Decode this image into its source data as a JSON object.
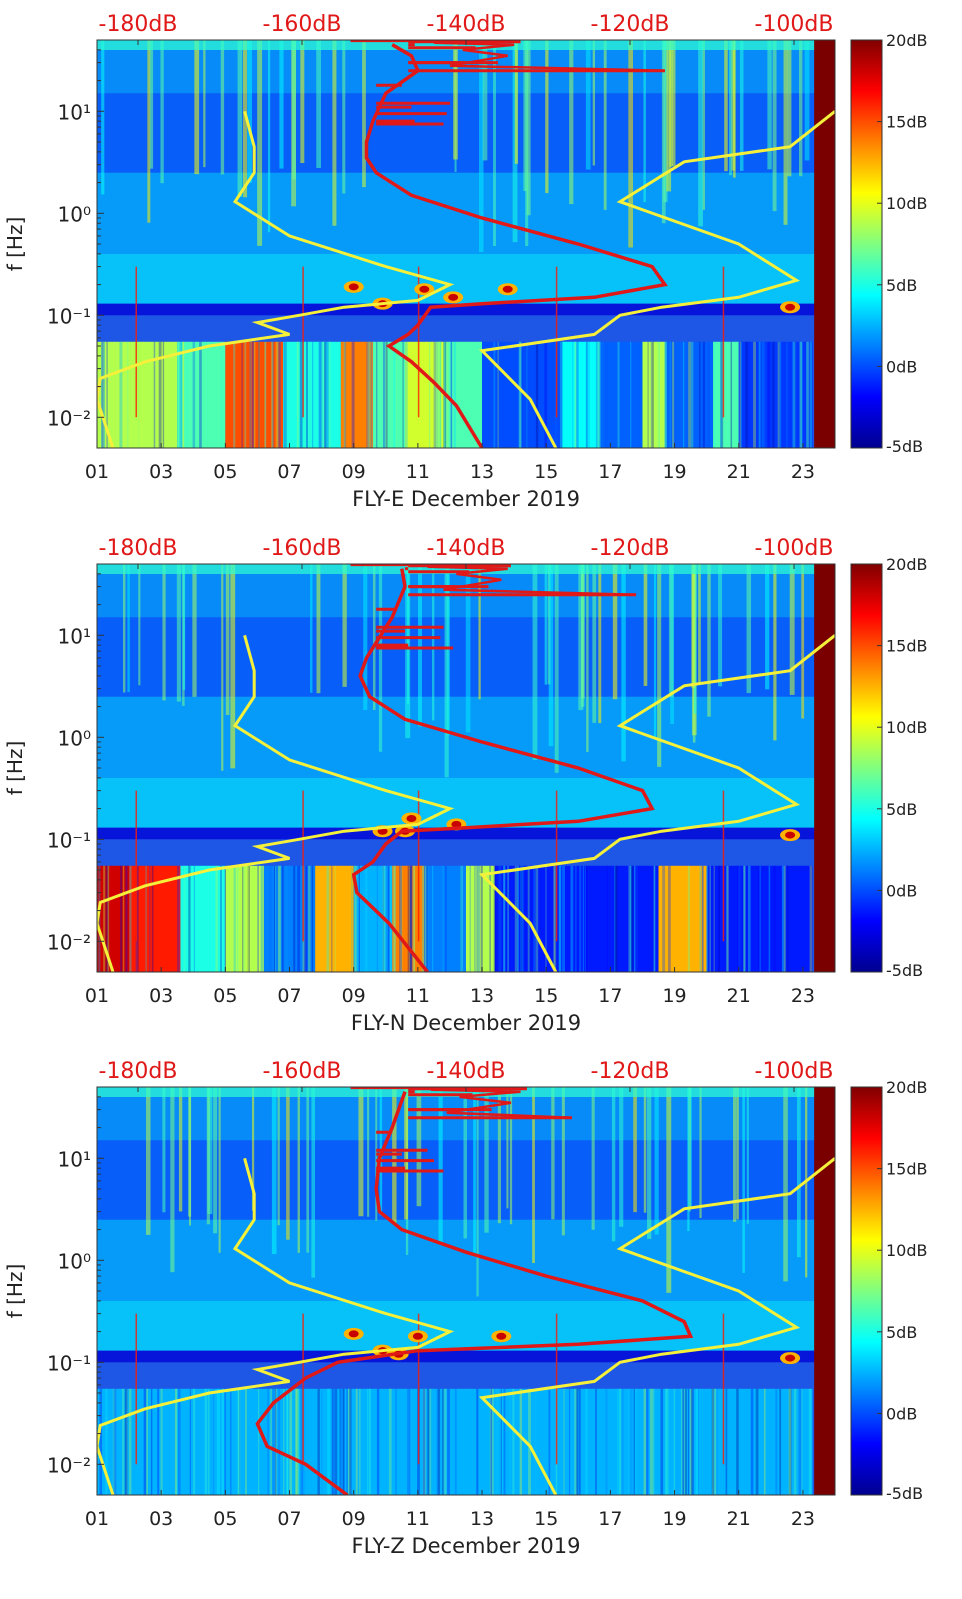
{
  "colors": {
    "background_noise": "#1e56e6",
    "yellow_model": "#f5f03a",
    "red_model": "#e01818",
    "top_label": "#e01818",
    "text": "#222222",
    "side_bar": "#7a0000"
  },
  "colormap": [
    "#00008f",
    "#0000ff",
    "#0080ff",
    "#00ffff",
    "#80ff80",
    "#ffff00",
    "#ff8000",
    "#ff0000",
    "#800000"
  ],
  "chart_data": [
    {
      "type": "heatmap",
      "title": "FLY-E December 2019",
      "xlabel": "FLY-E December 2019",
      "ylabel": "f [Hz]",
      "x_ticks": [
        "01",
        "03",
        "05",
        "07",
        "09",
        "11",
        "13",
        "15",
        "17",
        "19",
        "21",
        "23"
      ],
      "xlim": [
        1,
        24
      ],
      "y_ticks": [
        "10⁻²",
        "10⁻¹",
        "10⁰",
        "10¹"
      ],
      "ylim_hz": [
        0.005,
        50
      ],
      "top_axis_labels": [
        "-180dB",
        "-160dB",
        "-140dB",
        "-120dB",
        "-100dB"
      ],
      "top_axis_range_db": [
        -185,
        -95
      ],
      "colorbar": {
        "ticks": [
          "20dB",
          "15dB",
          "10dB",
          "5dB",
          "0dB",
          "-5dB"
        ],
        "range_db": [
          -5,
          20
        ]
      },
      "low_freq_bands": [
        {
          "x0": 1.0,
          "x1": 3.5,
          "level": 0.55
        },
        {
          "x0": 3.5,
          "x1": 5.0,
          "level": 0.45
        },
        {
          "x0": 5.0,
          "x1": 6.8,
          "level": 0.8
        },
        {
          "x0": 6.8,
          "x1": 8.6,
          "level": 0.4
        },
        {
          "x0": 8.6,
          "x1": 9.6,
          "level": 0.75
        },
        {
          "x0": 9.6,
          "x1": 10.6,
          "level": 0.45
        },
        {
          "x0": 10.6,
          "x1": 11.8,
          "level": 0.58
        },
        {
          "x0": 11.8,
          "x1": 13.0,
          "level": 0.45
        },
        {
          "x0": 13.0,
          "x1": 15.5,
          "level": 0.2
        },
        {
          "x0": 15.5,
          "x1": 16.7,
          "level": 0.38
        },
        {
          "x0": 16.7,
          "x1": 18.0,
          "level": 0.22
        },
        {
          "x0": 18.0,
          "x1": 18.7,
          "level": 0.55
        },
        {
          "x0": 18.7,
          "x1": 20.2,
          "level": 0.22
        },
        {
          "x0": 20.2,
          "x1": 21.0,
          "level": 0.45
        },
        {
          "x0": 21.0,
          "x1": 23.3,
          "level": 0.18
        }
      ],
      "hotspots": [
        [
          9.0,
          0.19
        ],
        [
          9.9,
          0.13
        ],
        [
          11.2,
          0.18
        ],
        [
          13.8,
          0.18
        ],
        [
          22.6,
          0.12
        ],
        [
          12.1,
          0.15
        ]
      ],
      "yellow_low_noise_model": [
        [
          5.6,
          10
        ],
        [
          5.9,
          4.5
        ],
        [
          5.9,
          2.5
        ],
        [
          5.3,
          1.3
        ],
        [
          7.0,
          0.6
        ],
        [
          10.0,
          0.3
        ],
        [
          12.0,
          0.2
        ],
        [
          11.0,
          0.14
        ],
        [
          8.7,
          0.12
        ],
        [
          7.3,
          0.1
        ],
        [
          6.0,
          0.085
        ],
        [
          7.0,
          0.065
        ],
        [
          4.5,
          0.05
        ],
        [
          2.5,
          0.035
        ],
        [
          1.1,
          0.024
        ],
        [
          1.0,
          0.015
        ],
        [
          1.5,
          0.005
        ]
      ],
      "yellow_high_noise_model": [
        [
          24.0,
          10
        ],
        [
          22.6,
          4.5
        ],
        [
          19.3,
          3.2
        ],
        [
          17.3,
          1.3
        ],
        [
          21.0,
          0.5
        ],
        [
          22.8,
          0.22
        ],
        [
          21.0,
          0.15
        ],
        [
          18.6,
          0.12
        ],
        [
          17.3,
          0.1
        ],
        [
          16.5,
          0.065
        ],
        [
          13.0,
          0.045
        ],
        [
          14.5,
          0.015
        ],
        [
          15.3,
          0.005
        ]
      ],
      "red_median": [
        [
          10.2,
          45
        ],
        [
          10.8,
          35
        ],
        [
          11.0,
          25
        ],
        [
          10.0,
          15
        ],
        [
          9.6,
          8
        ],
        [
          9.4,
          5
        ],
        [
          9.4,
          3.5
        ],
        [
          9.7,
          2.5
        ],
        [
          10.8,
          1.5
        ],
        [
          13.0,
          0.9
        ],
        [
          16.0,
          0.5
        ],
        [
          18.3,
          0.3
        ],
        [
          18.7,
          0.2
        ],
        [
          16.5,
          0.15
        ],
        [
          13.0,
          0.13
        ],
        [
          11.4,
          0.12
        ],
        [
          11.0,
          0.08
        ],
        [
          10.7,
          0.065
        ],
        [
          10.1,
          0.05
        ],
        [
          10.8,
          0.035
        ],
        [
          11.5,
          0.022
        ],
        [
          12.2,
          0.013
        ],
        [
          13.0,
          0.005
        ]
      ],
      "red_spikes": [
        [
          10.5,
          18
        ],
        [
          12.0,
          12
        ],
        [
          10.8,
          11
        ],
        [
          11.9,
          9.5
        ],
        [
          10.9,
          8
        ],
        [
          11.8,
          7.5
        ],
        [
          13.5,
          30
        ],
        [
          12.5,
          30
        ],
        [
          18.7,
          25
        ],
        [
          10.9,
          45
        ],
        [
          12.8,
          42
        ],
        [
          14.2,
          48
        ]
      ],
      "red_top_segment": [
        [
          8.9,
          49
        ],
        [
          13.0,
          49
        ],
        [
          11.5,
          47
        ],
        [
          14.0,
          45
        ],
        [
          12.4,
          40
        ],
        [
          13.8,
          35
        ],
        [
          12.0,
          28
        ],
        [
          18.7,
          25
        ]
      ]
    },
    {
      "type": "heatmap",
      "title": "FLY-N December 2019",
      "xlabel": "FLY-N December 2019",
      "ylabel": "f [Hz]",
      "x_ticks": [
        "01",
        "03",
        "05",
        "07",
        "09",
        "11",
        "13",
        "15",
        "17",
        "19",
        "21",
        "23"
      ],
      "xlim": [
        1,
        24
      ],
      "y_ticks": [
        "10⁻²",
        "10⁻¹",
        "10⁰",
        "10¹"
      ],
      "ylim_hz": [
        0.005,
        50
      ],
      "top_axis_labels": [
        "-180dB",
        "-160dB",
        "-140dB",
        "-120dB",
        "-100dB"
      ],
      "top_axis_range_db": [
        -185,
        -95
      ],
      "colorbar": {
        "ticks": [
          "20dB",
          "15dB",
          "10dB",
          "5dB",
          "0dB",
          "-5dB"
        ],
        "range_db": [
          -5,
          20
        ]
      },
      "low_freq_bands": [
        {
          "x0": 1.0,
          "x1": 2.0,
          "level": 0.92
        },
        {
          "x0": 2.0,
          "x1": 3.6,
          "level": 0.85
        },
        {
          "x0": 3.6,
          "x1": 5.0,
          "level": 0.4
        },
        {
          "x0": 5.0,
          "x1": 6.2,
          "level": 0.55
        },
        {
          "x0": 6.2,
          "x1": 7.8,
          "level": 0.25
        },
        {
          "x0": 7.8,
          "x1": 9.0,
          "level": 0.7
        },
        {
          "x0": 9.0,
          "x1": 10.2,
          "level": 0.3
        },
        {
          "x0": 10.2,
          "x1": 11.2,
          "level": 0.75
        },
        {
          "x0": 11.2,
          "x1": 12.5,
          "level": 0.25
        },
        {
          "x0": 12.5,
          "x1": 13.4,
          "level": 0.55
        },
        {
          "x0": 13.4,
          "x1": 18.5,
          "level": 0.15
        },
        {
          "x0": 18.5,
          "x1": 20.0,
          "level": 0.7
        },
        {
          "x0": 20.0,
          "x1": 23.3,
          "level": 0.15
        }
      ],
      "hotspots": [
        [
          9.9,
          0.12
        ],
        [
          10.8,
          0.16
        ],
        [
          10.6,
          0.12
        ],
        [
          22.6,
          0.11
        ],
        [
          12.2,
          0.14
        ]
      ],
      "yellow_low_noise_model": [
        [
          5.6,
          10
        ],
        [
          5.9,
          4.5
        ],
        [
          5.9,
          2.5
        ],
        [
          5.3,
          1.3
        ],
        [
          7.0,
          0.6
        ],
        [
          10.0,
          0.3
        ],
        [
          12.0,
          0.2
        ],
        [
          11.0,
          0.14
        ],
        [
          8.7,
          0.12
        ],
        [
          7.3,
          0.1
        ],
        [
          6.0,
          0.085
        ],
        [
          7.0,
          0.065
        ],
        [
          4.5,
          0.05
        ],
        [
          2.5,
          0.035
        ],
        [
          1.1,
          0.024
        ],
        [
          1.0,
          0.015
        ],
        [
          1.5,
          0.005
        ]
      ],
      "yellow_high_noise_model": [
        [
          24.0,
          10
        ],
        [
          22.6,
          4.5
        ],
        [
          19.3,
          3.2
        ],
        [
          17.3,
          1.3
        ],
        [
          21.0,
          0.5
        ],
        [
          22.8,
          0.22
        ],
        [
          21.0,
          0.15
        ],
        [
          18.6,
          0.12
        ],
        [
          17.3,
          0.1
        ],
        [
          16.5,
          0.065
        ],
        [
          13.0,
          0.045
        ],
        [
          14.5,
          0.015
        ],
        [
          15.3,
          0.005
        ]
      ],
      "red_median": [
        [
          10.5,
          45
        ],
        [
          10.6,
          30
        ],
        [
          10.2,
          15
        ],
        [
          9.4,
          6
        ],
        [
          9.2,
          4
        ],
        [
          9.5,
          2.5
        ],
        [
          10.6,
          1.5
        ],
        [
          13.0,
          0.9
        ],
        [
          16.0,
          0.5
        ],
        [
          18.0,
          0.3
        ],
        [
          18.3,
          0.2
        ],
        [
          16.0,
          0.15
        ],
        [
          12.5,
          0.13
        ],
        [
          10.5,
          0.12
        ],
        [
          10.0,
          0.09
        ],
        [
          9.6,
          0.06
        ],
        [
          9.0,
          0.045
        ],
        [
          9.1,
          0.03
        ],
        [
          10.1,
          0.015
        ],
        [
          11.3,
          0.005
        ]
      ],
      "red_spikes": [
        [
          10.3,
          18
        ],
        [
          11.8,
          12
        ],
        [
          10.6,
          11
        ],
        [
          11.7,
          9.5
        ],
        [
          10.7,
          8
        ],
        [
          12.1,
          7.5
        ],
        [
          13.2,
          30
        ],
        [
          12.2,
          30
        ],
        [
          17.8,
          25
        ],
        [
          10.6,
          45
        ],
        [
          12.6,
          42
        ],
        [
          13.9,
          48
        ]
      ],
      "red_top_segment": [
        [
          8.9,
          49
        ],
        [
          12.8,
          49
        ],
        [
          11.3,
          47
        ],
        [
          13.8,
          45
        ],
        [
          12.2,
          40
        ],
        [
          13.6,
          35
        ],
        [
          11.8,
          28
        ],
        [
          17.8,
          25
        ]
      ]
    },
    {
      "type": "heatmap",
      "title": "FLY-Z December 2019",
      "xlabel": "FLY-Z December 2019",
      "ylabel": "f [Hz]",
      "x_ticks": [
        "01",
        "03",
        "05",
        "07",
        "09",
        "11",
        "13",
        "15",
        "17",
        "19",
        "21",
        "23"
      ],
      "xlim": [
        1,
        24
      ],
      "y_ticks": [
        "10⁻²",
        "10⁻¹",
        "10⁰",
        "10¹"
      ],
      "ylim_hz": [
        0.005,
        50
      ],
      "top_axis_labels": [
        "-180dB",
        "-160dB",
        "-140dB",
        "-120dB",
        "-100dB"
      ],
      "top_axis_range_db": [
        -185,
        -95
      ],
      "colorbar": {
        "ticks": [
          "20dB",
          "15dB",
          "10dB",
          "5dB",
          "0dB",
          "-5dB"
        ],
        "range_db": [
          -5,
          20
        ]
      },
      "low_freq_bands": [
        {
          "x0": 1.0,
          "x1": 23.3,
          "level": 0.3
        }
      ],
      "hotspots": [
        [
          9.0,
          0.19
        ],
        [
          9.9,
          0.13
        ],
        [
          11.0,
          0.18
        ],
        [
          13.6,
          0.18
        ],
        [
          22.6,
          0.11
        ],
        [
          10.4,
          0.12
        ]
      ],
      "yellow_low_noise_model": [
        [
          5.6,
          10
        ],
        [
          5.9,
          4.5
        ],
        [
          5.9,
          2.5
        ],
        [
          5.3,
          1.3
        ],
        [
          7.0,
          0.6
        ],
        [
          10.0,
          0.3
        ],
        [
          12.0,
          0.2
        ],
        [
          11.0,
          0.14
        ],
        [
          8.7,
          0.12
        ],
        [
          7.3,
          0.1
        ],
        [
          6.0,
          0.085
        ],
        [
          7.0,
          0.065
        ],
        [
          4.5,
          0.05
        ],
        [
          2.5,
          0.035
        ],
        [
          1.1,
          0.024
        ],
        [
          1.0,
          0.015
        ],
        [
          1.5,
          0.005
        ]
      ],
      "yellow_high_noise_model": [
        [
          24.0,
          10
        ],
        [
          22.6,
          4.5
        ],
        [
          19.3,
          3.2
        ],
        [
          17.3,
          1.3
        ],
        [
          21.0,
          0.5
        ],
        [
          22.8,
          0.22
        ],
        [
          21.0,
          0.15
        ],
        [
          18.6,
          0.12
        ],
        [
          17.3,
          0.1
        ],
        [
          16.5,
          0.065
        ],
        [
          13.0,
          0.045
        ],
        [
          14.5,
          0.015
        ],
        [
          15.3,
          0.005
        ]
      ],
      "red_median": [
        [
          10.6,
          45
        ],
        [
          10.2,
          20
        ],
        [
          9.8,
          10
        ],
        [
          9.7,
          5
        ],
        [
          9.8,
          3
        ],
        [
          10.5,
          2
        ],
        [
          12.5,
          1.2
        ],
        [
          15.0,
          0.7
        ],
        [
          18.0,
          0.4
        ],
        [
          19.3,
          0.25
        ],
        [
          19.5,
          0.18
        ],
        [
          16.0,
          0.15
        ],
        [
          11.0,
          0.13
        ],
        [
          8.5,
          0.1
        ],
        [
          7.5,
          0.07
        ],
        [
          6.5,
          0.04
        ],
        [
          6.0,
          0.025
        ],
        [
          6.3,
          0.015
        ],
        [
          7.5,
          0.01
        ],
        [
          8.8,
          0.005
        ]
      ],
      "red_spikes": [
        [
          10.2,
          18
        ],
        [
          11.3,
          12
        ],
        [
          10.5,
          11
        ],
        [
          11.5,
          9.5
        ],
        [
          10.6,
          8
        ],
        [
          11.8,
          7.5
        ],
        [
          13.3,
          30
        ],
        [
          12.4,
          30
        ],
        [
          15.8,
          25
        ],
        [
          10.9,
          45
        ],
        [
          12.7,
          42
        ],
        [
          14.4,
          48
        ]
      ],
      "red_top_segment": [
        [
          8.9,
          49
        ],
        [
          13.0,
          49
        ],
        [
          11.4,
          47
        ],
        [
          14.2,
          45
        ],
        [
          12.3,
          40
        ],
        [
          13.9,
          35
        ],
        [
          11.9,
          28
        ],
        [
          15.8,
          25
        ]
      ]
    }
  ]
}
